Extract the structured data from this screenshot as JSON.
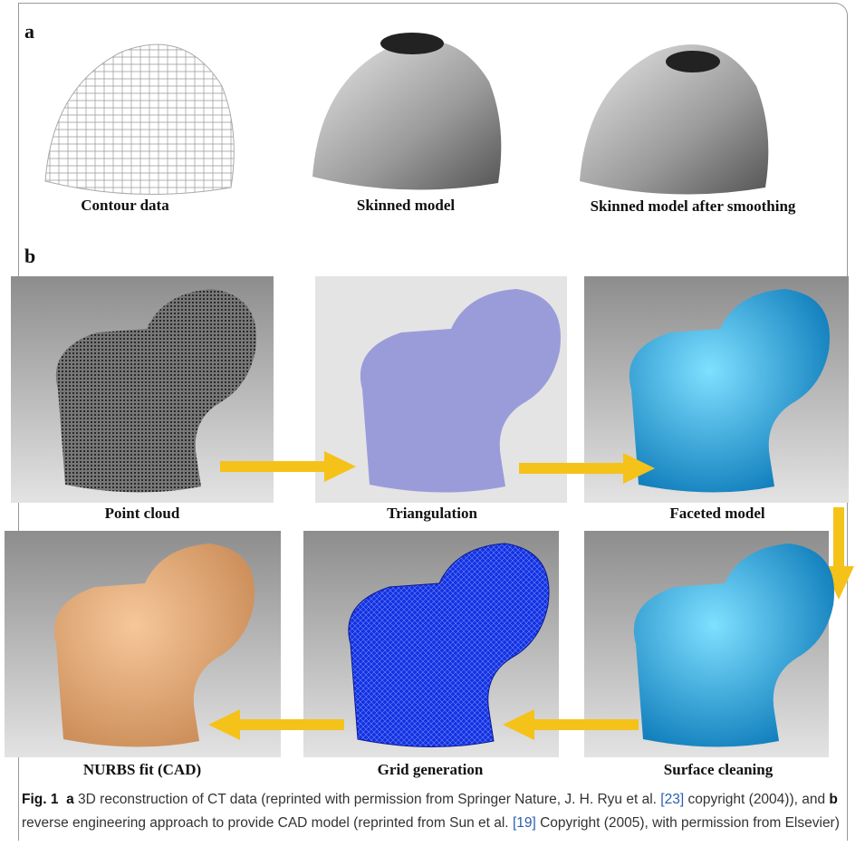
{
  "panel_a": {
    "label": "a",
    "items": [
      "Contour data",
      "Skinned model",
      "Skinned model after smoothing"
    ]
  },
  "panel_b": {
    "label": "b",
    "steps": [
      "Point cloud",
      "Triangulation",
      "Faceted model",
      "Surface cleaning",
      "Grid generation",
      "NURBS fit (CAD)"
    ]
  },
  "caption": {
    "label": "Fig. 1",
    "segments": [
      "a",
      "3D reconstruction of CT data (reprinted with permission from Springer Nature, J. H. Ryu et al.",
      "[23]",
      "copyright (2004)), and",
      "b",
      "reverse engineering approach to provide CAD model (reprinted from Sun et al.",
      "[19]",
      "Copyright (2005), with permission from Elsevier)"
    ]
  }
}
